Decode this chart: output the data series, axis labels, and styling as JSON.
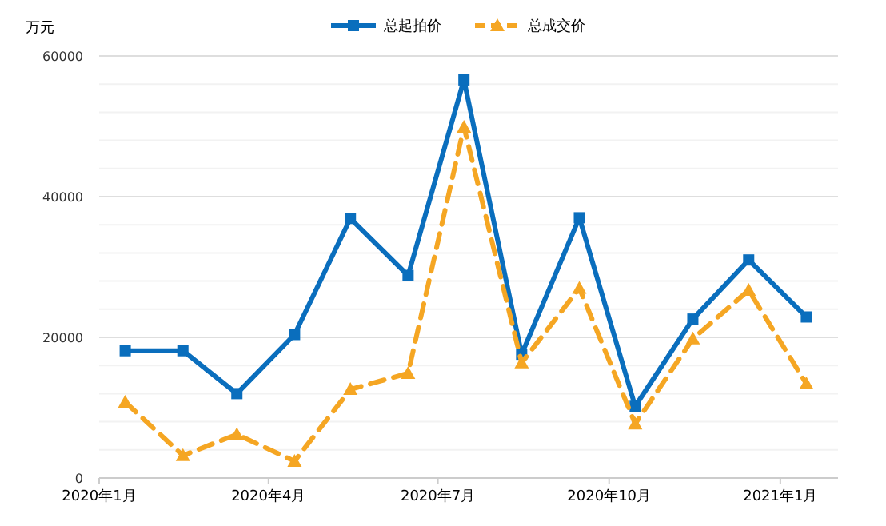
{
  "chart_data": {
    "type": "line",
    "ylabel": "万元",
    "x": [
      "2020-01-15",
      "2020-02-15",
      "2020-03-15",
      "2020-04-15",
      "2020-05-15",
      "2020-06-15",
      "2020-07-15",
      "2020-08-15",
      "2020-09-15",
      "2020-10-15",
      "2020-11-15",
      "2020-12-15",
      "2021-01-15"
    ],
    "xlim": [
      "2020-01-01",
      "2021-02-01"
    ],
    "xticks": [
      {
        "value": "2020-01-01",
        "label": "2020年1月"
      },
      {
        "value": "2020-04-01",
        "label": "2020年4月"
      },
      {
        "value": "2020-07-01",
        "label": "2020年7月"
      },
      {
        "value": "2020-10-01",
        "label": "2020年10月"
      },
      {
        "value": "2021-01-01",
        "label": "2021年1月"
      }
    ],
    "ylim": [
      0,
      60000
    ],
    "yticks": [
      0,
      {
        "value": 4000,
        "label": null
      },
      {
        "value": 8000,
        "label": null
      },
      {
        "value": 12000,
        "label": null
      },
      {
        "value": 16000,
        "label": null
      },
      20000,
      {
        "value": 24000,
        "label": null
      },
      {
        "value": 28000,
        "label": null
      },
      {
        "value": 32000,
        "label": null
      },
      {
        "value": 36000,
        "label": null
      },
      40000,
      {
        "value": 44000,
        "label": null
      },
      {
        "value": 48000,
        "label": null
      },
      {
        "value": 52000,
        "label": null
      },
      {
        "value": 56000,
        "label": null
      },
      60000
    ],
    "grid": "y",
    "legend": "top",
    "series": [
      {
        "name": "总起拍价",
        "color": "#0a6ebd",
        "marker": "square",
        "line_style": "solid",
        "values": [
          18100,
          18100,
          12000,
          20400,
          36900,
          28800,
          56600,
          17600,
          37000,
          10200,
          22600,
          31000,
          22900
        ]
      },
      {
        "name": "总成交价",
        "color": "#f5a623",
        "marker": "triangle",
        "line_style": "dashed",
        "values": [
          10800,
          3200,
          6200,
          2400,
          12600,
          14900,
          49900,
          16400,
          27000,
          7700,
          19800,
          26700,
          13400
        ]
      }
    ]
  }
}
